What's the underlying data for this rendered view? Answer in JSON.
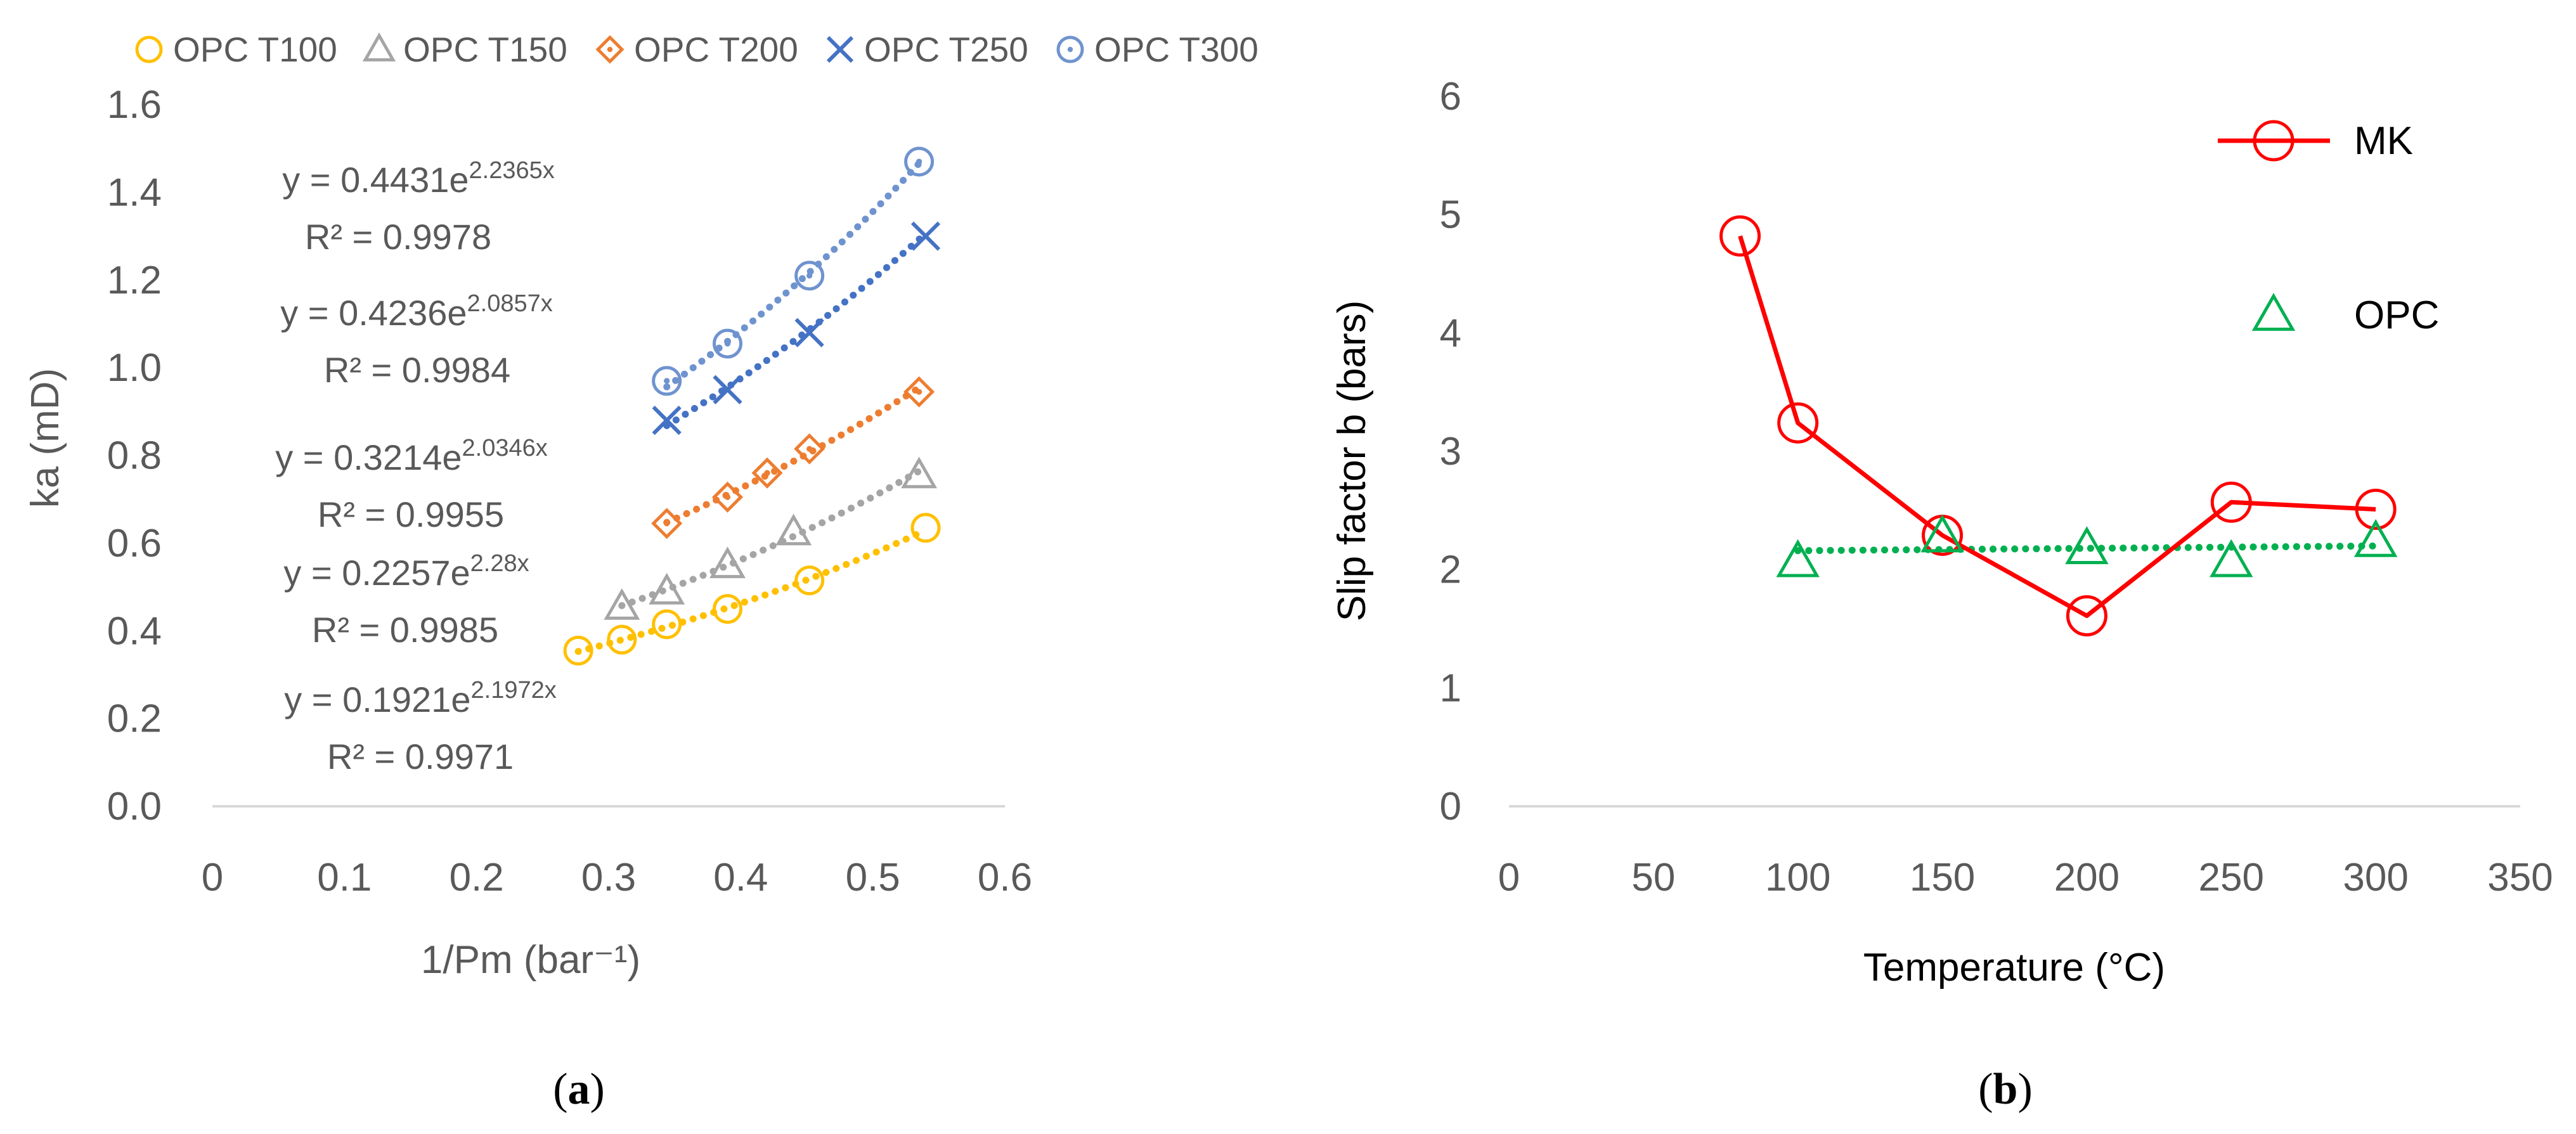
{
  "chart_data": [
    {
      "type": "scatter",
      "panel": "a",
      "caption": "(a)",
      "caption_letter": "a",
      "xlabel": "1/Pm (bar⁻¹)",
      "ylabel": "ka (mD)",
      "xlim": [
        0,
        0.6
      ],
      "ylim": [
        0,
        1.6
      ],
      "xticks": [
        0,
        0.1,
        0.2,
        0.3,
        0.4,
        0.5,
        0.6
      ],
      "xtick_labels": [
        "0",
        "0.1",
        "0.2",
        "0.3",
        "0.4",
        "0.5",
        "0.6"
      ],
      "yticks": [
        0,
        0.2,
        0.4,
        0.6,
        0.8,
        1.0,
        1.2,
        1.4,
        1.6
      ],
      "ytick_labels": [
        "0.0",
        "0.2",
        "0.4",
        "0.6",
        "0.8",
        "1.0",
        "1.2",
        "1.4",
        "1.6"
      ],
      "legend_position": "top",
      "series": [
        {
          "name": "OPC T100",
          "marker": "circle",
          "color": "#FFC000",
          "x": [
            0.277,
            0.31,
            0.344,
            0.39,
            0.452,
            0.54
          ],
          "y": [
            0.355,
            0.38,
            0.415,
            0.45,
            0.515,
            0.635
          ],
          "trendline": "exponential",
          "fit": {
            "a": 0.1921,
            "b": 2.1972
          },
          "equation_prefix": "y = 0.1921e",
          "equation_exponent": "2.1972x",
          "r2_text": "R² = 0.9971"
        },
        {
          "name": "OPC T150",
          "marker": "triangle",
          "color": "#A5A5A5",
          "x": [
            0.31,
            0.344,
            0.39,
            0.44,
            0.535
          ],
          "y": [
            0.455,
            0.49,
            0.55,
            0.625,
            0.755
          ],
          "trendline": "exponential",
          "fit": {
            "a": 0.2257,
            "b": 2.28
          },
          "equation_prefix": "y = 0.2257e",
          "equation_exponent": "2.28x",
          "r2_text": "R² = 0.9985"
        },
        {
          "name": "OPC T200",
          "marker": "diamond",
          "color": "#ED7D31",
          "x": [
            0.344,
            0.39,
            0.42,
            0.452,
            0.535
          ],
          "y": [
            0.645,
            0.705,
            0.76,
            0.815,
            0.945
          ],
          "trendline": "exponential",
          "fit": {
            "a": 0.3214,
            "b": 2.0346
          },
          "equation_prefix": "y = 0.3214e",
          "equation_exponent": "2.0346x",
          "r2_text": "R² = 0.9955"
        },
        {
          "name": "OPC T250",
          "marker": "x",
          "color": "#4472C4",
          "x": [
            0.344,
            0.39,
            0.452,
            0.54
          ],
          "y": [
            0.88,
            0.95,
            1.08,
            1.3
          ],
          "trendline": "exponential",
          "fit": {
            "a": 0.4236,
            "b": 2.0857
          },
          "equation_prefix": "y = 0.4236e",
          "equation_exponent": "2.0857x",
          "r2_text": "R² = 0.9984"
        },
        {
          "name": "OPC T300",
          "marker": "circle-dot",
          "color": "#6F93CF",
          "x": [
            0.344,
            0.39,
            0.452,
            0.535
          ],
          "y": [
            0.97,
            1.055,
            1.21,
            1.47
          ],
          "trendline": "exponential",
          "fit": {
            "a": 0.4431,
            "b": 2.2365
          },
          "equation_prefix": "y = 0.4431e",
          "equation_exponent": "2.2365x",
          "r2_text": "R² = 0.9978"
        }
      ]
    },
    {
      "type": "line",
      "panel": "b",
      "caption": "(b)",
      "caption_letter": "b",
      "xlabel": "Temperature (°C)",
      "ylabel": "Slip factor b (bars)",
      "xlim": [
        0,
        350
      ],
      "ylim": [
        0,
        6
      ],
      "xticks": [
        0,
        50,
        100,
        150,
        200,
        250,
        300,
        350
      ],
      "xtick_labels": [
        "0",
        "50",
        "100",
        "150",
        "200",
        "250",
        "300",
        "350"
      ],
      "yticks": [
        0,
        1,
        2,
        3,
        4,
        5,
        6
      ],
      "ytick_labels": [
        "0",
        "1",
        "2",
        "3",
        "4",
        "5",
        "6"
      ],
      "legend_position": "right",
      "series": [
        {
          "name": "MK",
          "marker": "circle",
          "color": "#FF0000",
          "line": "solid",
          "x": [
            80,
            100,
            150,
            200,
            250,
            300
          ],
          "y": [
            4.82,
            3.24,
            2.29,
            1.61,
            2.57,
            2.51
          ]
        },
        {
          "name": "OPC",
          "marker": "triangle",
          "color": "#00B050",
          "line": "none",
          "trendline": "linear",
          "x": [
            100,
            150,
            200,
            250,
            300
          ],
          "y": [
            2.07,
            2.28,
            2.18,
            2.07,
            2.24
          ],
          "trend_y": [
            2.16,
            2.2
          ]
        }
      ]
    }
  ]
}
